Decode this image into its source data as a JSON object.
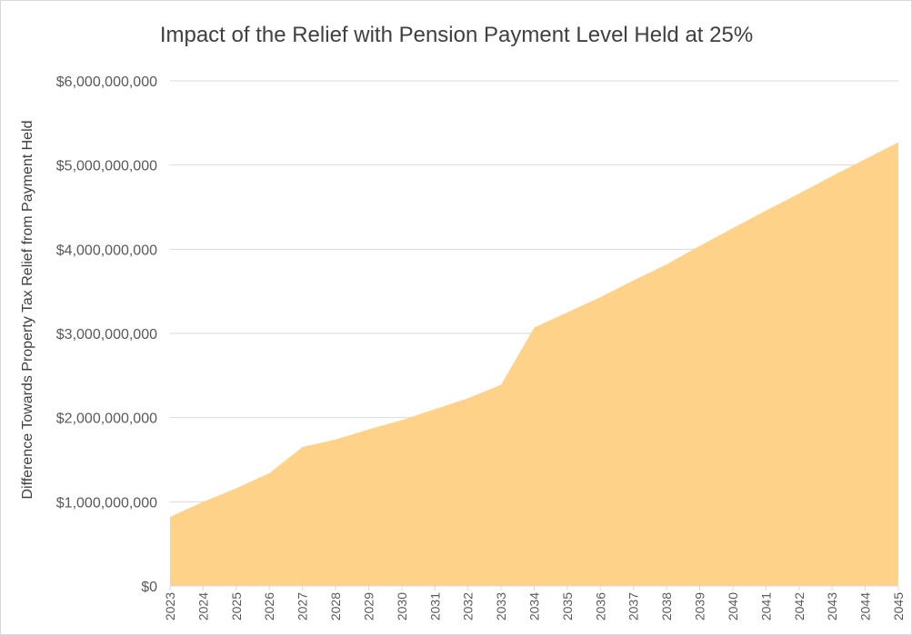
{
  "chart_data": {
    "type": "area",
    "title": "Impact of the Relief with Pension Payment Level Held at 25%",
    "xlabel": "",
    "ylabel": "Difference Towards Property Tax Relief from Payment Held",
    "categories": [
      "2023",
      "2024",
      "2025",
      "2026",
      "2027",
      "2028",
      "2029",
      "2030",
      "2031",
      "2032",
      "2033",
      "2034",
      "2035",
      "2036",
      "2037",
      "2038",
      "2039",
      "2040",
      "2041",
      "2042",
      "2043",
      "2044",
      "2045"
    ],
    "values": [
      820000000,
      1000000000,
      1160000000,
      1340000000,
      1650000000,
      1740000000,
      1860000000,
      1970000000,
      2100000000,
      2230000000,
      2390000000,
      3070000000,
      3250000000,
      3430000000,
      3630000000,
      3820000000,
      4040000000,
      4250000000,
      4460000000,
      4660000000,
      4870000000,
      5070000000,
      5270000000
    ],
    "ylim": [
      0,
      6000000000
    ],
    "yticks": [
      0,
      1000000000,
      2000000000,
      3000000000,
      4000000000,
      5000000000,
      6000000000
    ],
    "ytick_labels": [
      "$0",
      "$1,000,000,000",
      "$2,000,000,000",
      "$3,000,000,000",
      "$4,000,000,000",
      "$5,000,000,000",
      "$6,000,000,000"
    ],
    "grid": true,
    "legend": "none",
    "color": "#FFD28A"
  }
}
